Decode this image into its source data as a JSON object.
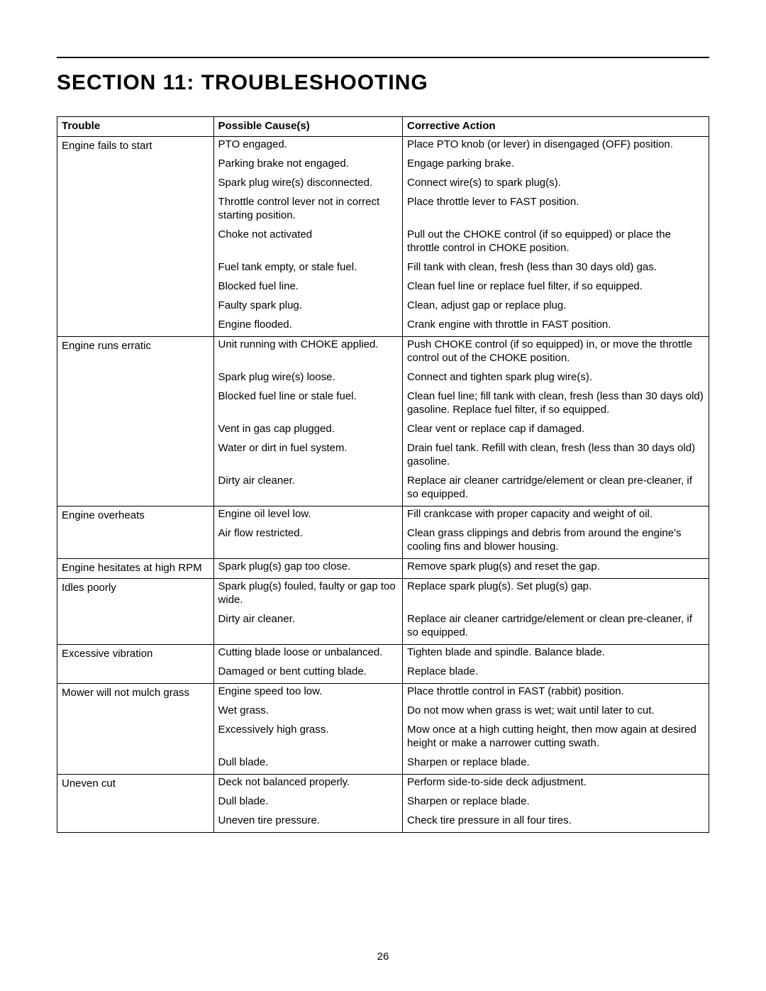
{
  "title": "SECTION 11: TROUBLESHOOTING",
  "pageNumber": "26",
  "table": {
    "headers": {
      "trouble": "Trouble",
      "cause": "Possible Cause(s)",
      "action": "Corrective Action"
    },
    "rows": [
      {
        "trouble": "Engine fails to start",
        "pairs": [
          {
            "cause": "PTO engaged.",
            "action": "Place PTO knob (or lever) in disengaged (OFF) position."
          },
          {
            "cause": "Parking brake not engaged.",
            "action": "Engage parking brake."
          },
          {
            "cause": "Spark plug wire(s) disconnected.",
            "action": "Connect wire(s) to spark plug(s)."
          },
          {
            "cause": "Throttle control lever not in correct starting position.",
            "action": "Place throttle lever to FAST position."
          },
          {
            "cause": "Choke not activated",
            "action": "Pull out the CHOKE control (if so equipped) or place the throttle control in CHOKE position."
          },
          {
            "cause": "Fuel tank empty, or stale fuel.",
            "action": "Fill tank with clean, fresh (less than 30 days old) gas."
          },
          {
            "cause": "Blocked fuel line.",
            "action": "Clean fuel line or replace fuel filter, if so equipped."
          },
          {
            "cause": "Faulty spark plug.",
            "action": "Clean, adjust gap or replace plug."
          },
          {
            "cause": "Engine flooded.",
            "action": "Crank engine with throttle in FAST position."
          }
        ]
      },
      {
        "trouble": "Engine runs erratic",
        "pairs": [
          {
            "cause": "Unit running with CHOKE applied.",
            "action": "Push CHOKE control (if so equipped) in, or move the throttle control out of the CHOKE position."
          },
          {
            "cause": "Spark plug wire(s) loose.",
            "action": "Connect and tighten spark plug wire(s)."
          },
          {
            "cause": "Blocked fuel line or stale fuel.",
            "action": "Clean fuel line; fill tank with clean, fresh (less than 30 days old) gasoline. Replace fuel filter, if so equipped."
          },
          {
            "cause": "Vent in gas cap plugged.",
            "action": "Clear vent or replace cap if damaged."
          },
          {
            "cause": "Water or dirt in fuel system.",
            "action": "Drain fuel tank. Refill with clean, fresh (less than 30 days old) gasoline."
          },
          {
            "cause": "Dirty air cleaner.",
            "action": "Replace air cleaner cartridge/element or clean pre-cleaner, if so equipped."
          }
        ]
      },
      {
        "trouble": "Engine overheats",
        "pairs": [
          {
            "cause": "Engine oil level low.",
            "action": "Fill crankcase with proper capacity and weight of oil."
          },
          {
            "cause": "Air flow restricted.",
            "action": "Clean grass clippings and debris from around the engine's cooling fins and blower housing."
          }
        ]
      },
      {
        "trouble": "Engine hesitates at high RPM",
        "pairs": [
          {
            "cause": "Spark plug(s) gap too close.",
            "action": "Remove spark plug(s) and reset the gap."
          }
        ]
      },
      {
        "trouble": "Idles poorly",
        "pairs": [
          {
            "cause": "Spark plug(s) fouled, faulty or gap too wide.",
            "action": "Replace spark plug(s). Set plug(s) gap."
          },
          {
            "cause": "Dirty air cleaner.",
            "action": "Replace air cleaner cartridge/element or clean pre-cleaner, if so equipped."
          }
        ]
      },
      {
        "trouble": "Excessive vibration",
        "pairs": [
          {
            "cause": "Cutting blade loose or unbalanced.",
            "action": "Tighten blade and spindle. Balance blade."
          },
          {
            "cause": "Damaged or bent cutting blade.",
            "action": "Replace blade."
          }
        ]
      },
      {
        "trouble": "Mower will not mulch grass",
        "pairs": [
          {
            "cause": "Engine speed too low.",
            "action": "Place throttle control in FAST (rabbit) position."
          },
          {
            "cause": "Wet grass.",
            "action": "Do not mow when grass is wet; wait until later to cut."
          },
          {
            "cause": "Excessively high grass.",
            "action": "Mow once at a high cutting height, then mow again at desired height or make a narrower cutting swath."
          },
          {
            "cause": "Dull blade.",
            "action": "Sharpen or replace blade."
          }
        ]
      },
      {
        "trouble": "Uneven cut",
        "pairs": [
          {
            "cause": "Deck not balanced properly.",
            "action": "Perform side-to-side deck adjustment."
          },
          {
            "cause": "Dull blade.",
            "action": "Sharpen or replace blade."
          },
          {
            "cause": "Uneven tire pressure.",
            "action": "Check tire pressure in all four tires."
          }
        ]
      }
    ]
  }
}
